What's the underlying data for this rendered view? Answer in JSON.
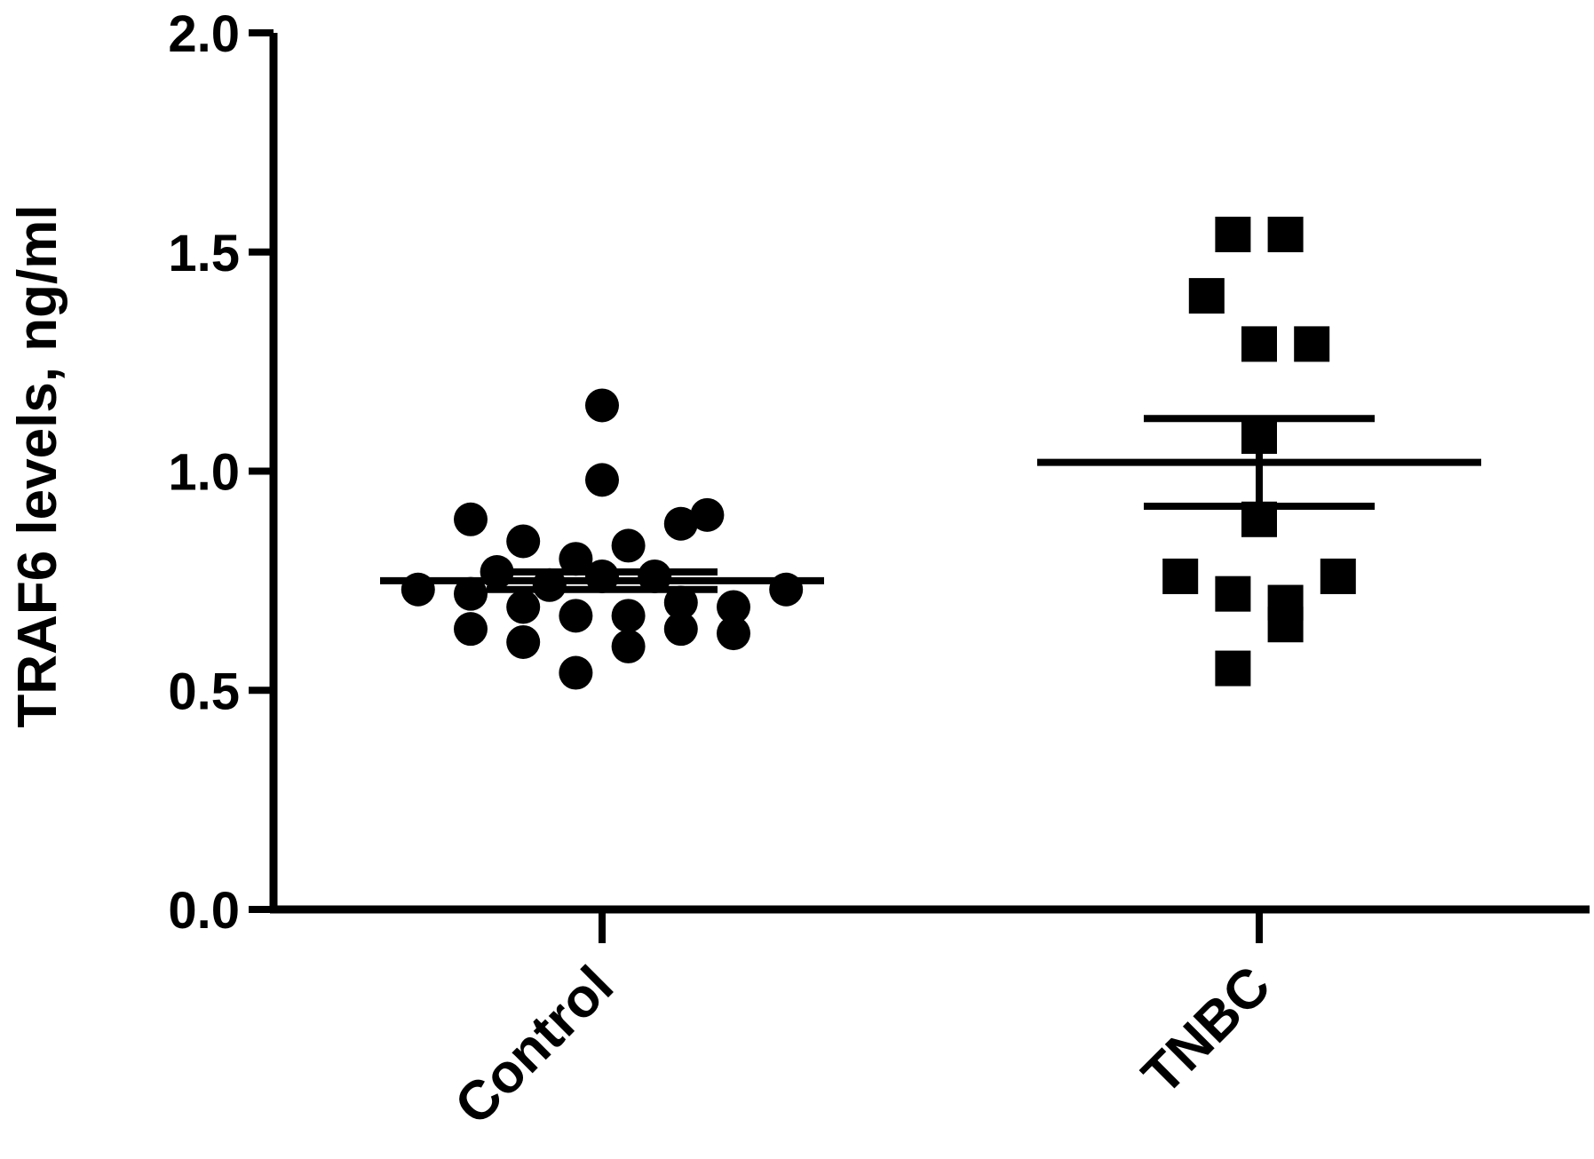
{
  "chart_data": {
    "type": "scatter",
    "title": "",
    "ylabel": "TRAF6 levels, ng/ml",
    "xlabel": "",
    "ylim": [
      0,
      2.0
    ],
    "yticks": [
      "0.0",
      "0.5",
      "1.0",
      "1.5",
      "2.0"
    ],
    "grid": false,
    "legend": "none",
    "categories": [
      "Control",
      "TNBC"
    ],
    "color": "#000000",
    "series": [
      {
        "category": "Control",
        "marker": "circle",
        "mean": 0.75,
        "sem": 0.02,
        "points": [
          {
            "offset": -0.28,
            "value": 0.73
          },
          {
            "offset": -0.2,
            "value": 0.89
          },
          {
            "offset": -0.2,
            "value": 0.72
          },
          {
            "offset": -0.2,
            "value": 0.64
          },
          {
            "offset": -0.16,
            "value": 0.77
          },
          {
            "offset": -0.12,
            "value": 0.84
          },
          {
            "offset": -0.12,
            "value": 0.69
          },
          {
            "offset": -0.12,
            "value": 0.61
          },
          {
            "offset": -0.08,
            "value": 0.74
          },
          {
            "offset": -0.04,
            "value": 0.8
          },
          {
            "offset": -0.04,
            "value": 0.67
          },
          {
            "offset": -0.04,
            "value": 0.54
          },
          {
            "offset": 0.0,
            "value": 1.15
          },
          {
            "offset": 0.0,
            "value": 0.98
          },
          {
            "offset": 0.0,
            "value": 0.76
          },
          {
            "offset": 0.04,
            "value": 0.83
          },
          {
            "offset": 0.04,
            "value": 0.67
          },
          {
            "offset": 0.04,
            "value": 0.6
          },
          {
            "offset": 0.08,
            "value": 0.76
          },
          {
            "offset": 0.12,
            "value": 0.88
          },
          {
            "offset": 0.12,
            "value": 0.7
          },
          {
            "offset": 0.12,
            "value": 0.64
          },
          {
            "offset": 0.16,
            "value": 0.9
          },
          {
            "offset": 0.2,
            "value": 0.69
          },
          {
            "offset": 0.2,
            "value": 0.63
          },
          {
            "offset": 0.28,
            "value": 0.73
          }
        ]
      },
      {
        "category": "TNBC",
        "marker": "square",
        "mean": 1.02,
        "sem": 0.1,
        "points": [
          {
            "offset": -0.04,
            "value": 1.54
          },
          {
            "offset": 0.04,
            "value": 1.54
          },
          {
            "offset": -0.08,
            "value": 1.4
          },
          {
            "offset": 0.0,
            "value": 1.29
          },
          {
            "offset": 0.08,
            "value": 1.29
          },
          {
            "offset": 0.0,
            "value": 1.08
          },
          {
            "offset": 0.0,
            "value": 0.89
          },
          {
            "offset": -0.12,
            "value": 0.76
          },
          {
            "offset": 0.12,
            "value": 0.76
          },
          {
            "offset": -0.04,
            "value": 0.72
          },
          {
            "offset": 0.04,
            "value": 0.7
          },
          {
            "offset": 0.04,
            "value": 0.65
          },
          {
            "offset": -0.04,
            "value": 0.55
          }
        ]
      }
    ]
  }
}
